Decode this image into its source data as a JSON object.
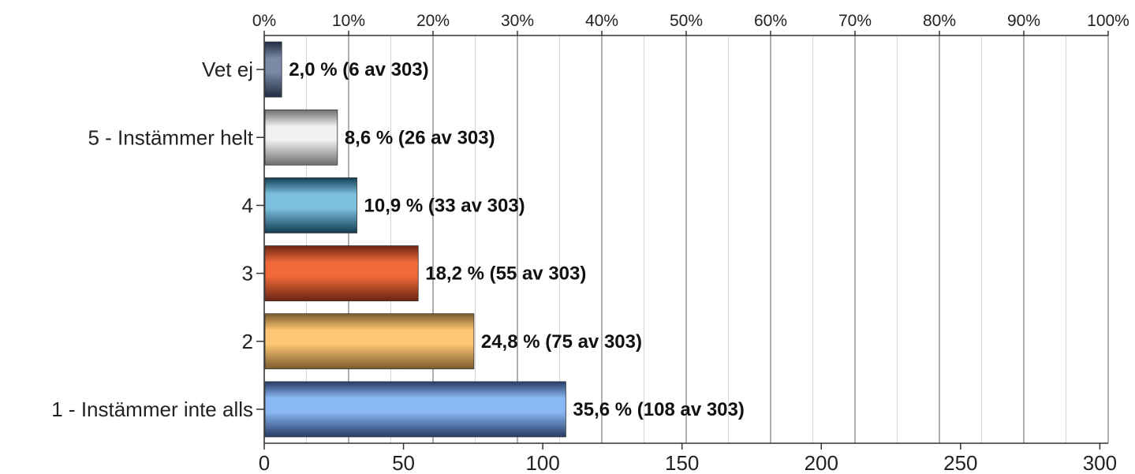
{
  "chart_data": {
    "type": "bar",
    "orientation": "horizontal",
    "categories": [
      "Vet ej",
      "5 - Instämmer helt",
      "4",
      "3",
      "2",
      "1 - Instämmer inte alls"
    ],
    "values": [
      6,
      26,
      33,
      55,
      75,
      108
    ],
    "percent": [
      2.0,
      8.6,
      10.9,
      18.2,
      24.8,
      35.6
    ],
    "data_labels": [
      "2,0 % (6 av 303)",
      "8,6 % (26 av 303)",
      "10,9 % (33 av 303)",
      "18,2 % (55 av 303)",
      "24,8 % (75 av 303)",
      "35,6 % (108 av 303)"
    ],
    "total": 303,
    "xlim": [
      0,
      303
    ],
    "bottom_ticks": [
      0,
      50,
      100,
      150,
      200,
      250,
      300
    ],
    "top_ticks": [
      "0%",
      "10%",
      "20%",
      "30%",
      "40%",
      "50%",
      "60%",
      "70%",
      "80%",
      "90%",
      "100%"
    ],
    "grid": true,
    "colors": {
      "Vet ej": [
        "#7a8aa6",
        "#1f2c42"
      ],
      "5 - Instämmer helt": [
        "#f0f0f0",
        "#6e6e6e"
      ],
      "4": [
        "#7cc0e0",
        "#123e52"
      ],
      "3": [
        "#f06a3a",
        "#6b2412"
      ],
      "2": [
        "#ffc773",
        "#7a5a2c"
      ],
      "1 - Instämmer inte alls": [
        "#8ab8f5",
        "#263c66"
      ]
    }
  }
}
